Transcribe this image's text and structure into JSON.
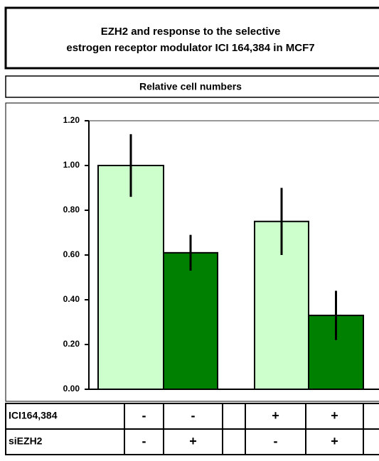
{
  "chart_data": {
    "type": "bar",
    "title": "EZH2 and response to the selective estrogen receptor modulator ICI 164,384 in MCF7",
    "subtitle": "Relative cell numbers",
    "values": [
      1.0,
      0.61,
      0.75,
      0.33
    ],
    "errors": [
      0.14,
      0.08,
      0.15,
      0.11
    ],
    "colors": [
      "#ccffcc",
      "#008000",
      "#ccffcc",
      "#008000"
    ],
    "ylim": [
      0,
      1.2
    ],
    "yticks": [
      {
        "value": 0,
        "label": "0.00"
      },
      {
        "value": 0.2,
        "label": "0.20"
      },
      {
        "value": 0.4,
        "label": "0.40"
      },
      {
        "value": 0.6,
        "label": "0.60"
      },
      {
        "value": 0.8,
        "label": "0.80"
      },
      {
        "value": 1.0,
        "label": "1.00"
      },
      {
        "value": 1.2,
        "label": "1.20"
      }
    ]
  },
  "table": {
    "rows": [
      {
        "label": "ICI164,384",
        "cells": [
          "-",
          "-",
          "+",
          "+"
        ]
      },
      {
        "label": "siEZH2",
        "cells": [
          "-",
          "+",
          "-",
          "+"
        ]
      }
    ]
  }
}
